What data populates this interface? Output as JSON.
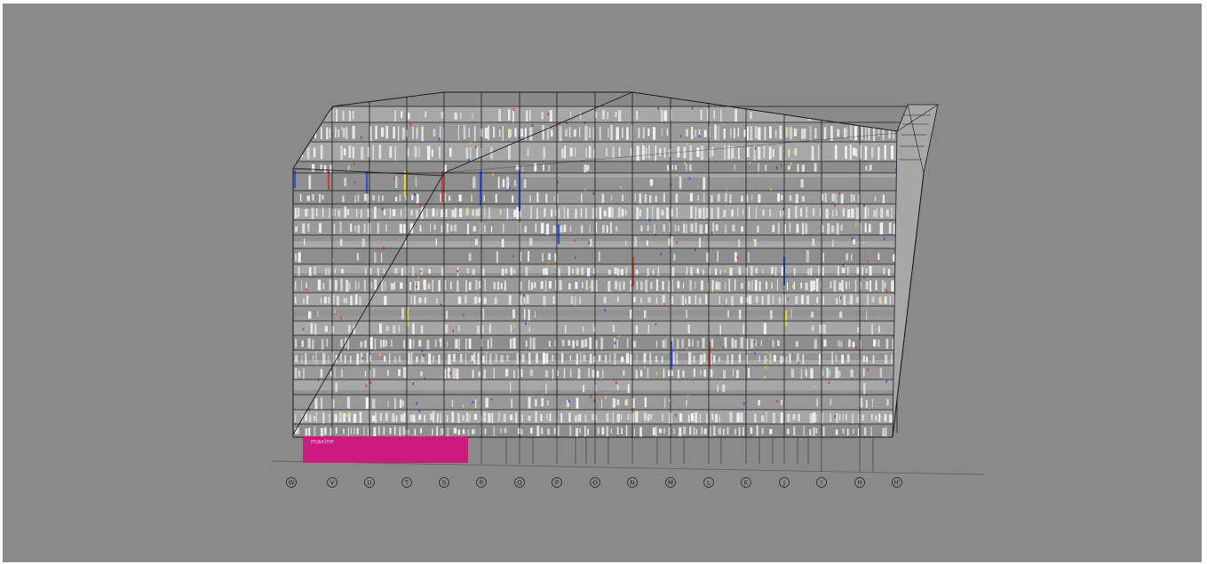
{
  "colors": {
    "background": "#8a8a8a",
    "facade_light": "#a7a7a7",
    "facade_mid": "#999999",
    "facade_dark": "#8e8e8e",
    "grid_line": "#1a1a1a",
    "window_white": "#f4f4f4",
    "accent_blue": "#2f55d4",
    "accent_red": "#d23b3b",
    "accent_yellow": "#e6d43a",
    "sign_magenta": "#cc1a80"
  },
  "sign": {
    "title": "maxine",
    "subtitle": ""
  },
  "grid_axes": [
    "W",
    "V",
    "U",
    "T",
    "S",
    "R",
    "Q",
    "P",
    "O",
    "N",
    "M",
    "L",
    "K",
    "J",
    "I",
    "H",
    "H'"
  ],
  "icons": [
    "grid-bubble-icon"
  ]
}
